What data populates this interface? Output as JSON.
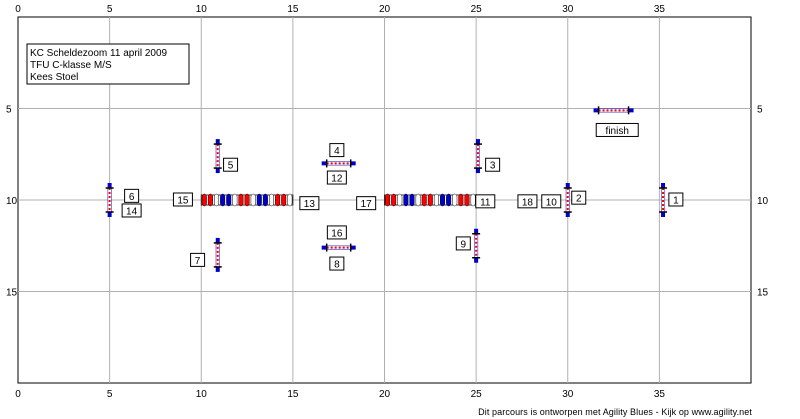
{
  "info": {
    "lines": [
      "KC Scheldezoom 11 april 2009",
      "TFU C-klasse M/S",
      "Kees Stoel"
    ]
  },
  "grid": {
    "x_min": 0,
    "x_max": 40,
    "y_min": 0,
    "y_max": 20,
    "x_ticks": [
      0,
      5,
      10,
      15,
      20,
      25,
      30,
      35
    ],
    "y_ticks": [
      5,
      10,
      15
    ]
  },
  "colors": {
    "red": "#ff0000",
    "blue": "#0000cc",
    "grid": "#b0b0b0"
  },
  "jumps": [
    {
      "id": "j1",
      "x": 35.2,
      "y": 10,
      "orient": "vertical"
    },
    {
      "id": "j2",
      "x": 30,
      "y": 10,
      "orient": "vertical"
    },
    {
      "id": "j3",
      "x": 25.1,
      "y": 7.6,
      "orient": "vertical"
    },
    {
      "id": "j4",
      "x": 17.5,
      "y": 8.0,
      "orient": "horizontal"
    },
    {
      "id": "j5",
      "x": 10.9,
      "y": 7.6,
      "orient": "vertical"
    },
    {
      "id": "j6",
      "x": 5,
      "y": 10,
      "orient": "vertical"
    },
    {
      "id": "j7",
      "x": 10.9,
      "y": 13.0,
      "orient": "vertical"
    },
    {
      "id": "j8",
      "x": 17.5,
      "y": 12.6,
      "orient": "horizontal"
    },
    {
      "id": "j9",
      "x": 25.0,
      "y": 12.5,
      "orient": "vertical"
    },
    {
      "id": "finish",
      "x": 32.5,
      "y": 5.1,
      "orient": "horizontal"
    }
  ],
  "tunnels": [
    {
      "id": "tunnel-left",
      "x1": 10,
      "x2": 15,
      "y": 10
    },
    {
      "id": "tunnel-right",
      "x1": 20,
      "x2": 25,
      "y": 10
    }
  ],
  "labels": [
    {
      "text": "1",
      "x": 35.9,
      "y": 10.0
    },
    {
      "text": "2",
      "x": 30.6,
      "y": 9.9
    },
    {
      "text": "3",
      "x": 25.9,
      "y": 8.1
    },
    {
      "text": "4",
      "x": 17.4,
      "y": 7.3
    },
    {
      "text": "5",
      "x": 11.6,
      "y": 8.1
    },
    {
      "text": "6",
      "x": 6.2,
      "y": 9.8
    },
    {
      "text": "7",
      "x": 9.8,
      "y": 13.3
    },
    {
      "text": "8",
      "x": 17.4,
      "y": 13.5
    },
    {
      "text": "9",
      "x": 24.3,
      "y": 12.4
    },
    {
      "text": "10",
      "x": 29.1,
      "y": 10.1
    },
    {
      "text": "11",
      "x": 25.5,
      "y": 10.1
    },
    {
      "text": "12",
      "x": 17.4,
      "y": 8.8
    },
    {
      "text": "13",
      "x": 15.9,
      "y": 10.2
    },
    {
      "text": "14",
      "x": 6.2,
      "y": 10.6
    },
    {
      "text": "15",
      "x": 9.0,
      "y": 10.0
    },
    {
      "text": "16",
      "x": 17.4,
      "y": 11.8
    },
    {
      "text": "17",
      "x": 19.0,
      "y": 10.2
    },
    {
      "text": "18",
      "x": 27.8,
      "y": 10.1
    },
    {
      "text": "finish",
      "x": 32.7,
      "y": 6.2
    }
  ],
  "footer": "Dit parcours is ontworpen met Agility Blues - Kijk op www.agility.net"
}
